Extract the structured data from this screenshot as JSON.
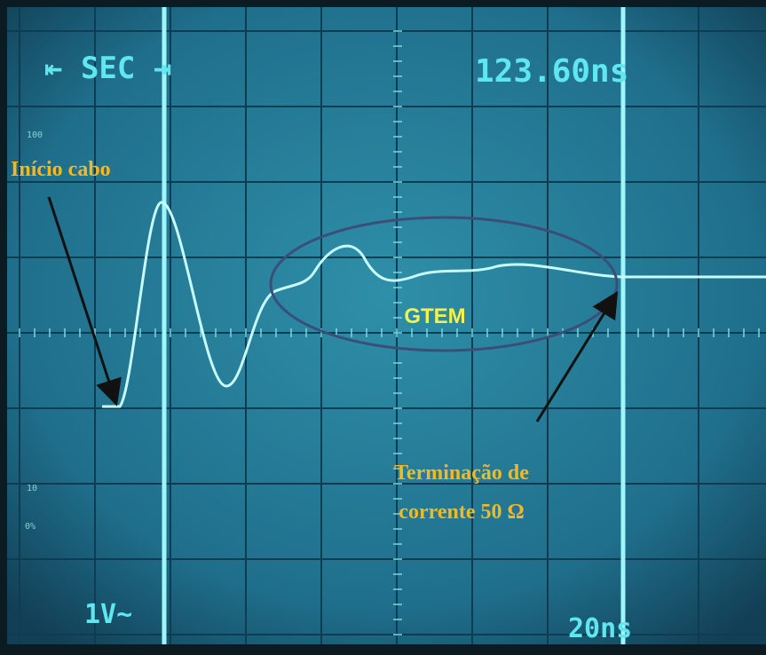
{
  "screen": {
    "header_left": "⇤ SEC ⇥",
    "header_right": "123.60ns",
    "scale_labels": [
      "100",
      "10",
      "0%"
    ],
    "bottom_left": "1V~",
    "bottom_right": "20ns"
  },
  "annotations": {
    "cable_start": "Início cabo",
    "region": "GTEM",
    "termination": [
      "Terminação de",
      "corrente 50 Ω"
    ]
  }
}
